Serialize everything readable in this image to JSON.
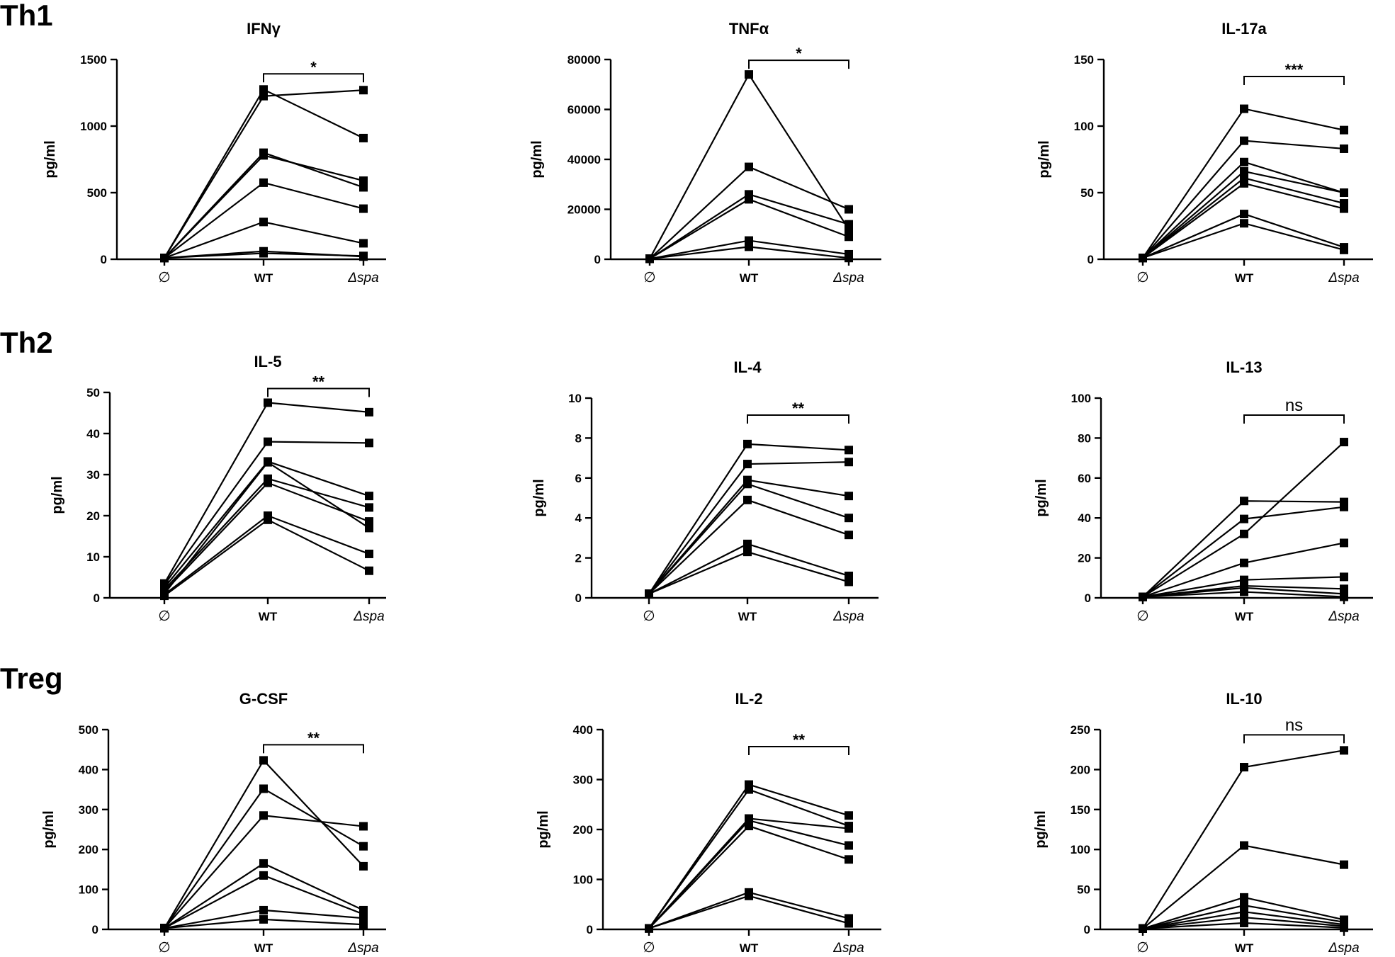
{
  "row_labels": [
    "Th1",
    "Th2",
    "Treg"
  ],
  "chart_data": [
    {
      "type": "line",
      "group": "Th1",
      "title": "IFNγ",
      "ylabel": "pg/ml",
      "categories": [
        "∅",
        "WT",
        "Δspa"
      ],
      "ylim": [
        0,
        1500
      ],
      "yticks": [
        "0",
        "500",
        "1000",
        "1500"
      ],
      "significance": "*",
      "series": [
        {
          "values": [
            10,
            1275,
            910
          ]
        },
        {
          "values": [
            10,
            1225,
            1270
          ]
        },
        {
          "values": [
            10,
            800,
            540
          ]
        },
        {
          "values": [
            10,
            780,
            590
          ]
        },
        {
          "values": [
            10,
            575,
            380
          ]
        },
        {
          "values": [
            10,
            280,
            120
          ]
        },
        {
          "values": [
            10,
            60,
            20
          ]
        },
        {
          "values": [
            10,
            45,
            25
          ]
        }
      ]
    },
    {
      "type": "line",
      "group": "Th1",
      "title": "TNFα",
      "ylabel": "pg/ml",
      "categories": [
        "∅",
        "WT",
        "Δspa"
      ],
      "ylim": [
        0,
        80000
      ],
      "yticks": [
        "0",
        "20000",
        "40000",
        "60000",
        "80000"
      ],
      "significance": "*",
      "series": [
        {
          "values": [
            200,
            74000,
            12000
          ]
        },
        {
          "values": [
            200,
            37000,
            20000
          ]
        },
        {
          "values": [
            200,
            26000,
            14000
          ]
        },
        {
          "values": [
            200,
            24000,
            9000
          ]
        },
        {
          "values": [
            200,
            7500,
            2000
          ]
        },
        {
          "values": [
            200,
            5000,
            500
          ]
        }
      ]
    },
    {
      "type": "line",
      "group": "Th1",
      "title": "IL-17a",
      "ylabel": "pg/ml",
      "categories": [
        "∅",
        "WT",
        "Δspa"
      ],
      "ylim": [
        0,
        150
      ],
      "yticks": [
        "0",
        "50",
        "100",
        "150"
      ],
      "significance": "***",
      "series": [
        {
          "values": [
            1,
            113,
            97
          ]
        },
        {
          "values": [
            1,
            89,
            83
          ]
        },
        {
          "values": [
            1,
            73,
            50
          ]
        },
        {
          "values": [
            1,
            66,
            50
          ]
        },
        {
          "values": [
            1,
            61,
            42
          ]
        },
        {
          "values": [
            1,
            57,
            38
          ]
        },
        {
          "values": [
            1,
            34,
            9
          ]
        },
        {
          "values": [
            1,
            27,
            7
          ]
        }
      ]
    },
    {
      "type": "line",
      "group": "Th2",
      "title": "IL-5",
      "ylabel": "pg/ml",
      "categories": [
        "∅",
        "WT",
        "Δspa"
      ],
      "ylim": [
        0,
        50
      ],
      "yticks": [
        "0",
        "10",
        "20",
        "30",
        "40",
        "50"
      ],
      "significance": "**",
      "series": [
        {
          "values": [
            3.5,
            47.5,
            45.2
          ]
        },
        {
          "values": [
            3.2,
            38,
            37.7
          ]
        },
        {
          "values": [
            2.5,
            33.2,
            24.8
          ]
        },
        {
          "values": [
            2,
            29,
            22
          ]
        },
        {
          "values": [
            1.5,
            28,
            18.6
          ]
        },
        {
          "values": [
            1,
            33,
            17
          ]
        },
        {
          "values": [
            0.8,
            20,
            10.7
          ]
        },
        {
          "values": [
            0.5,
            19,
            6.6
          ]
        }
      ]
    },
    {
      "type": "line",
      "group": "Th2",
      "title": "IL-4",
      "ylabel": "pg/ml",
      "categories": [
        "∅",
        "WT",
        "Δspa"
      ],
      "ylim": [
        0,
        10
      ],
      "yticks": [
        "0",
        "2",
        "4",
        "6",
        "8",
        "10"
      ],
      "significance": "**",
      "series": [
        {
          "values": [
            0.2,
            7.7,
            7.4
          ]
        },
        {
          "values": [
            0.2,
            6.7,
            6.8
          ]
        },
        {
          "values": [
            0.2,
            5.9,
            5.1
          ]
        },
        {
          "values": [
            0.2,
            5.7,
            4.0
          ]
        },
        {
          "values": [
            0.2,
            4.9,
            3.15
          ]
        },
        {
          "values": [
            0.2,
            2.7,
            1.1
          ]
        },
        {
          "values": [
            0.2,
            2.3,
            0.8
          ]
        }
      ]
    },
    {
      "type": "line",
      "group": "Th2",
      "title": "IL-13",
      "ylabel": "pg/ml",
      "categories": [
        "∅",
        "WT",
        "Δspa"
      ],
      "ylim": [
        0,
        100
      ],
      "yticks": [
        "0",
        "20",
        "40",
        "60",
        "80",
        "100"
      ],
      "significance": "ns",
      "series": [
        {
          "values": [
            0.5,
            32,
            78
          ]
        },
        {
          "values": [
            0.5,
            48.5,
            48
          ]
        },
        {
          "values": [
            0.5,
            39.5,
            45.5
          ]
        },
        {
          "values": [
            0.5,
            17.5,
            27.5
          ]
        },
        {
          "values": [
            0.5,
            9,
            10.5
          ]
        },
        {
          "values": [
            0.5,
            6,
            4.5
          ]
        },
        {
          "values": [
            0.5,
            5,
            2
          ]
        },
        {
          "values": [
            0.5,
            3,
            0.5
          ]
        }
      ]
    },
    {
      "type": "line",
      "group": "Treg",
      "title": "G-CSF",
      "ylabel": "pg/ml",
      "categories": [
        "∅",
        "WT",
        "Δspa"
      ],
      "ylim": [
        0,
        500
      ],
      "yticks": [
        "0",
        "100",
        "200",
        "300",
        "400",
        "500"
      ],
      "significance": "**",
      "series": [
        {
          "values": [
            3,
            423,
            158
          ]
        },
        {
          "values": [
            3,
            352,
            208
          ]
        },
        {
          "values": [
            3,
            285,
            258
          ]
        },
        {
          "values": [
            3,
            165,
            48
          ]
        },
        {
          "values": [
            3,
            135,
            38
          ]
        },
        {
          "values": [
            3,
            48,
            28
          ]
        },
        {
          "values": [
            3,
            25,
            12
          ]
        }
      ]
    },
    {
      "type": "line",
      "group": "Treg",
      "title": "IL-2",
      "ylabel": "pg/ml",
      "categories": [
        "∅",
        "WT",
        "Δspa"
      ],
      "ylim": [
        0,
        400
      ],
      "yticks": [
        "0",
        "100",
        "200",
        "300",
        "400"
      ],
      "significance": "**",
      "series": [
        {
          "values": [
            2,
            290,
            228
          ]
        },
        {
          "values": [
            2,
            280,
            207
          ]
        },
        {
          "values": [
            2,
            222,
            202
          ]
        },
        {
          "values": [
            2,
            218,
            168
          ]
        },
        {
          "values": [
            2,
            207,
            140
          ]
        },
        {
          "values": [
            2,
            74,
            22
          ]
        },
        {
          "values": [
            2,
            67,
            12
          ]
        }
      ]
    },
    {
      "type": "line",
      "group": "Treg",
      "title": "IL-10",
      "ylabel": "pg/ml",
      "categories": [
        "∅",
        "WT",
        "Δspa"
      ],
      "ylim": [
        0,
        250
      ],
      "yticks": [
        "0",
        "50",
        "100",
        "150",
        "200",
        "250"
      ],
      "significance": "ns",
      "series": [
        {
          "values": [
            1,
            203,
            224
          ]
        },
        {
          "values": [
            1,
            105,
            81
          ]
        },
        {
          "values": [
            1,
            40,
            12
          ]
        },
        {
          "values": [
            1,
            30,
            9
          ]
        },
        {
          "values": [
            1,
            22,
            6
          ]
        },
        {
          "values": [
            1,
            15,
            4
          ]
        },
        {
          "values": [
            1,
            8,
            2
          ]
        }
      ]
    }
  ]
}
